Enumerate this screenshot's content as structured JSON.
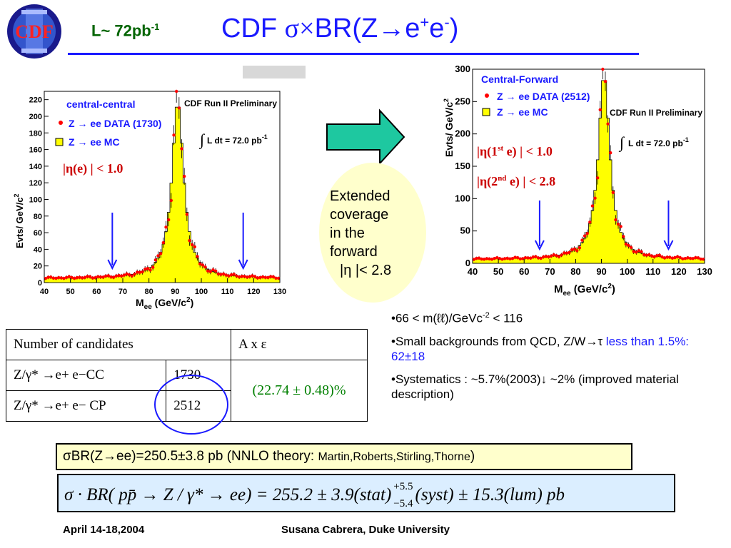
{
  "header": {
    "logo_text": "CDF",
    "luminosity": "L~ 72pb",
    "luminosity_exp": "-1",
    "title_pre": "CDF ",
    "title_sigma": "σ×",
    "title_main": "BR(Z→e",
    "title_plus": "+",
    "title_e": "e",
    "title_minus": "-",
    "title_end": ")"
  },
  "charts": [
    {
      "type": "histogram",
      "panel": "central-central",
      "title": "CDF Run II Preliminary",
      "legend_title": "central-central",
      "legend": [
        "Z → ee DATA (1730)",
        "Z → ee  MC"
      ],
      "lumi_label": "L dt = 72.0 pb",
      "lumi_exp": "-1",
      "cut_label": "|η(e) | < 1.0",
      "xlabel": "M",
      "xlabel_sub": "ee",
      "xlabel_unit": " (GeV/c",
      "xlabel_unit_exp": "2",
      "ylabel": "Evts/ GeV/c",
      "ylabel_exp": "2",
      "xlim": [
        40,
        130
      ],
      "ylim": [
        0,
        230
      ],
      "xticks": [
        "40",
        "50",
        "60",
        "70",
        "80",
        "90",
        "100",
        "110",
        "120",
        "130"
      ],
      "yticks": [
        "0",
        "20",
        "40",
        "60",
        "80",
        "100",
        "120",
        "140",
        "160",
        "180",
        "200",
        "220"
      ],
      "mass_window": [
        66,
        116
      ],
      "peak_mass": 91,
      "peak_height": 218,
      "width": 2.7,
      "background": 5
    },
    {
      "type": "histogram",
      "panel": "central-forward",
      "title": "CDF Run II Preliminary",
      "legend_title": "Central-Forward",
      "legend": [
        "Z → ee DATA (2512)",
        "Z → ee  MC"
      ],
      "lumi_label": "L dt = 72.0 pb",
      "lumi_exp": "-1",
      "cut_lines": [
        "|η(1",
        "st",
        " e) | < 1.0",
        "|η(2",
        "nd",
        " e) | < 2.8"
      ],
      "xlabel": "M",
      "xlabel_sub": "ee",
      "xlabel_unit": " (GeV/c",
      "xlabel_unit_exp": "2",
      "ylabel": "Evts/ GeV/c",
      "ylabel_exp": "2",
      "xlim": [
        40,
        130
      ],
      "ylim": [
        0,
        300
      ],
      "xticks": [
        "40",
        "50",
        "60",
        "70",
        "80",
        "90",
        "100",
        "110",
        "120",
        "130"
      ],
      "yticks": [
        "0",
        "50",
        "100",
        "150",
        "200",
        "250",
        "300"
      ],
      "mass_window": [
        66,
        116
      ],
      "peak_mass": 91,
      "peak_height": 292,
      "width": 2.7,
      "background": 6
    }
  ],
  "callout": {
    "lines": [
      "Extended",
      "coverage",
      "in the",
      "forward",
      "|η |< 2.8"
    ]
  },
  "table": {
    "header": [
      "Number of candidates",
      "A x ε"
    ],
    "rows": [
      {
        "process": "Z/γ* →e+ e−CC",
        "count": "1730"
      },
      {
        "process": "Z/γ* →e+ e− CP",
        "count": "2512"
      }
    ],
    "acceptance": "(22.74 ± 0.48)%",
    "acceptance_color": "#008000",
    "highlight_color": "#1a1aff"
  },
  "bullets": [
    {
      "text": "•66 < m(ℓℓ)/GeVc",
      "exp": "-2",
      "tail": " < 116"
    },
    {
      "text": "•Small backgrounds from QCD, Z/W→τ ",
      "blue": "less than 1.5%: 62±18"
    },
    {
      "text": "•Systematics : ~5.7%(2003)↓ ~2% (improved material description)"
    }
  ],
  "result_box": {
    "main": "σBR(Z→ee)=250.5±3.8 pb (NNLO theory: ",
    "authors": "Martin,Roberts,Stirling,Thorne",
    "end": ")"
  },
  "formula": {
    "lhs": "σ · BR( pp̄ → Z / γ* → ee) = 255.2 ± 3.9(stat)",
    "up": "+5.5",
    "down": "−5.4",
    "rhs": "(syst) ± 15.3(lum) pb"
  },
  "footer": {
    "date": "April 14-18,2004",
    "author": "Susana Cabrera, Duke University"
  },
  "colors": {
    "accent": "#1a1aff",
    "data": "#ff0000",
    "mc": "#ffff00",
    "arrow": "#1ec8a0",
    "lumi": "#006400"
  }
}
